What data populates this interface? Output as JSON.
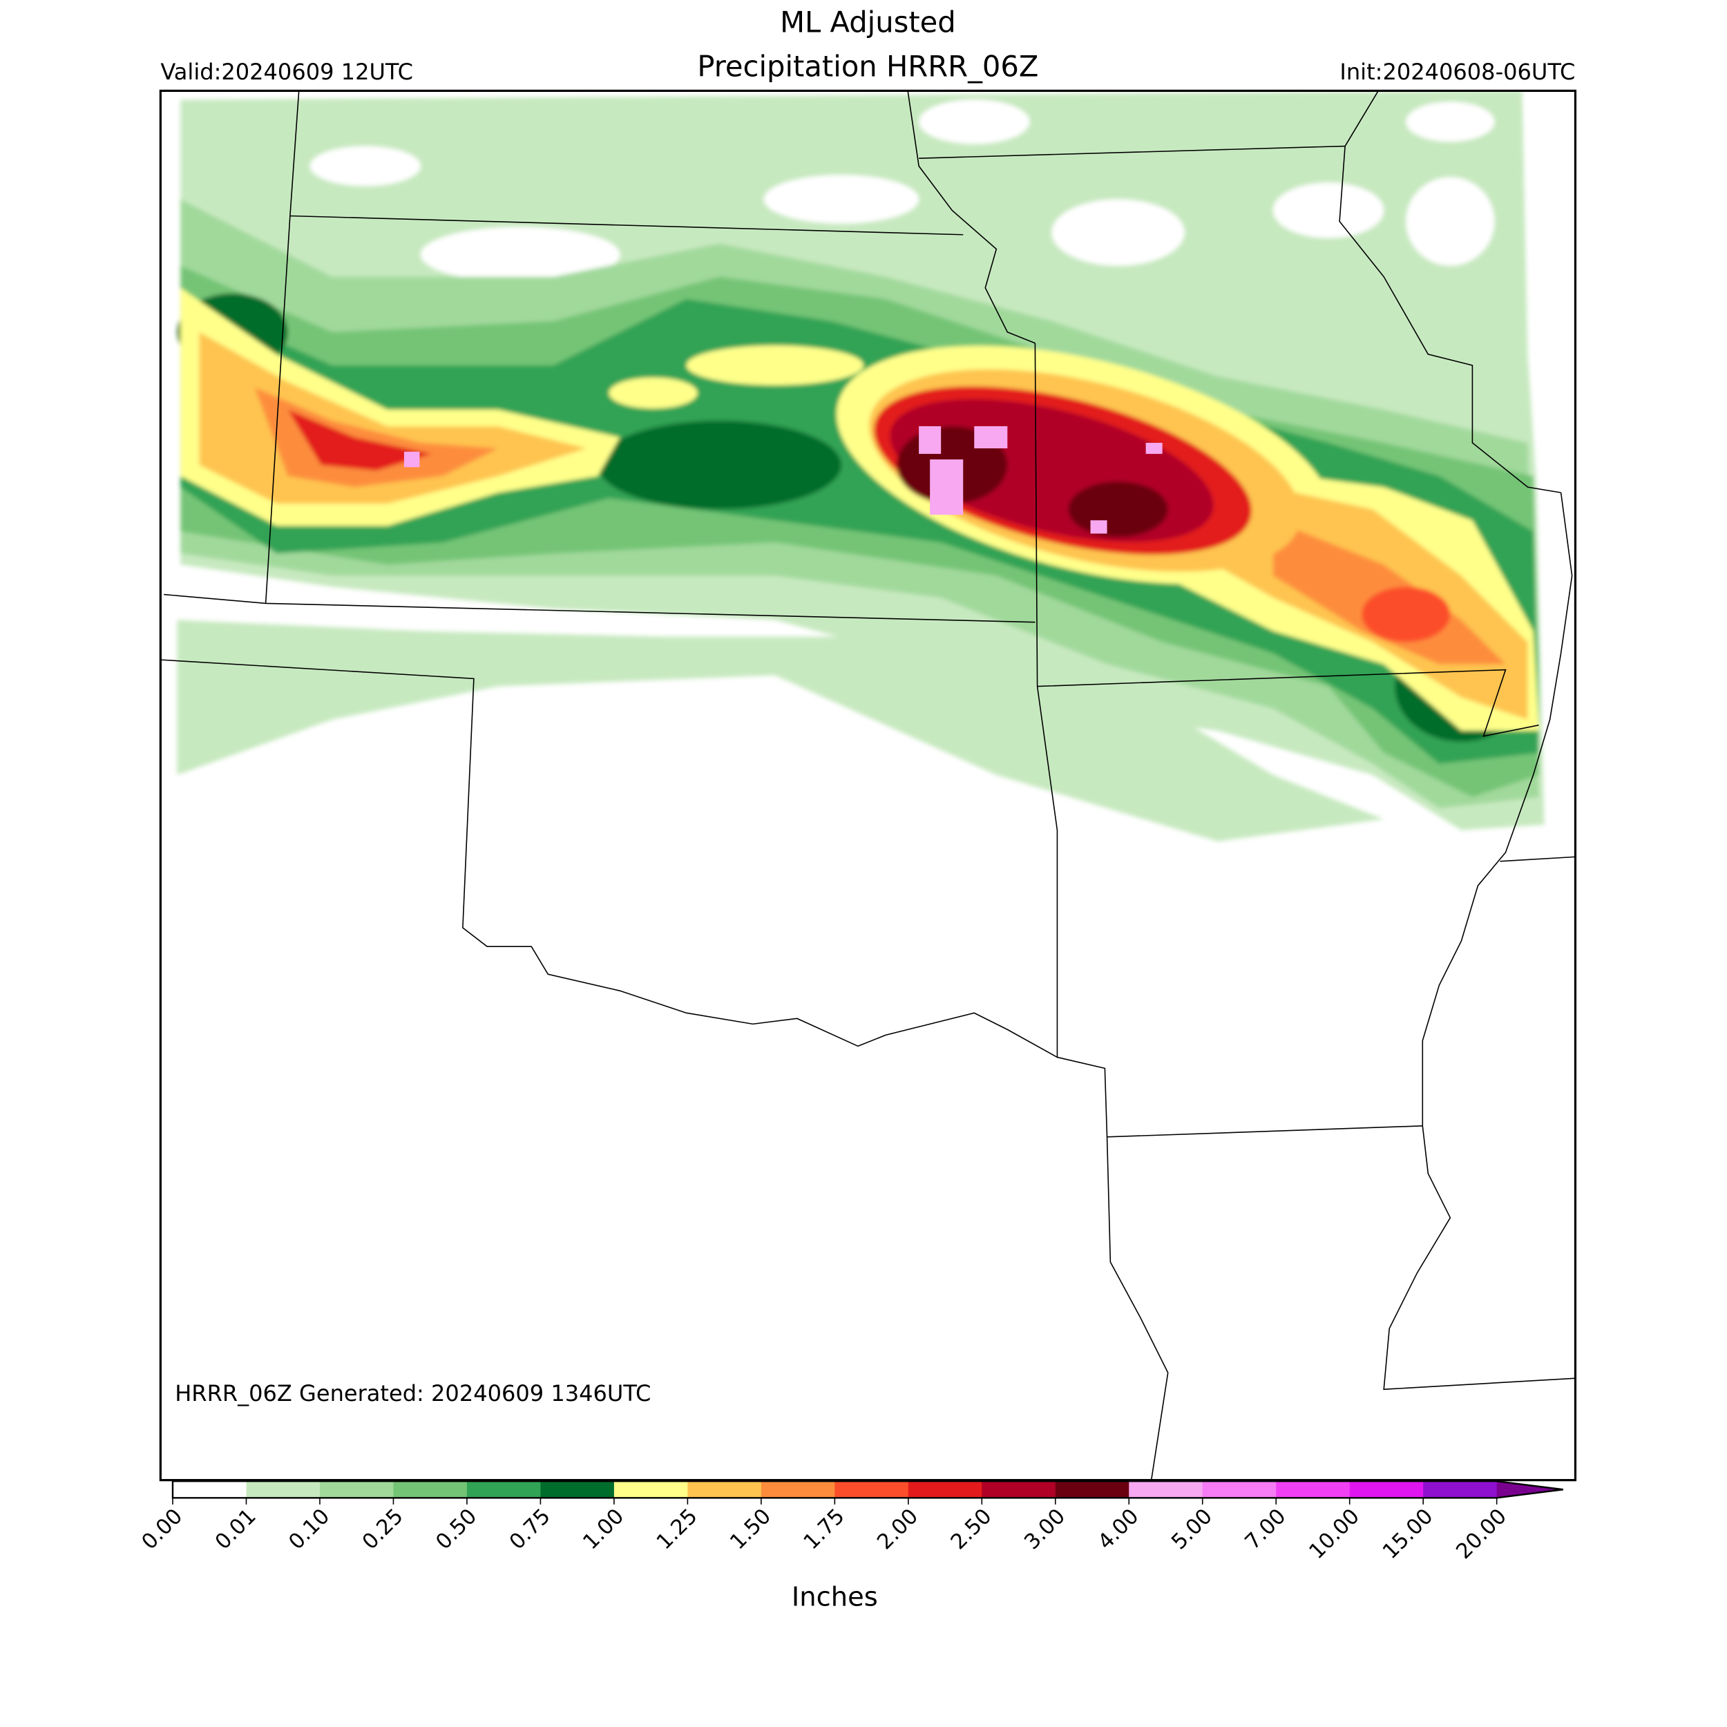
{
  "header": {
    "title_lines": [
      "ML Adjusted",
      "Precipitation HRRR_06Z"
    ],
    "valid": "Valid:20240609 12UTC",
    "init": "Init:20240608-06UTC"
  },
  "map": {
    "note": "HRRR_06Z Generated: 20240609 1346UTC"
  },
  "colorbar": {
    "labels": [
      "0.00",
      "0.01",
      "0.10",
      "0.25",
      "0.50",
      "0.75",
      "1.00",
      "1.25",
      "1.50",
      "1.75",
      "2.00",
      "2.50",
      "3.00",
      "4.00",
      "5.00",
      "7.00",
      "10.00",
      "15.00",
      "20.00"
    ],
    "colors": [
      "#ffffff",
      "#c7e9c0",
      "#a1d99b",
      "#74c476",
      "#31a354",
      "#006d2c",
      "#ffff8a",
      "#fec44f",
      "#fd8d3c",
      "#fc4e2a",
      "#e31a1c",
      "#b10026",
      "#6a0010",
      "#f7a8f0",
      "#f57cf5",
      "#f040f5",
      "#e016f0",
      "#9010d0"
    ],
    "extend_color": "#7a0090",
    "title": "Inches"
  }
}
